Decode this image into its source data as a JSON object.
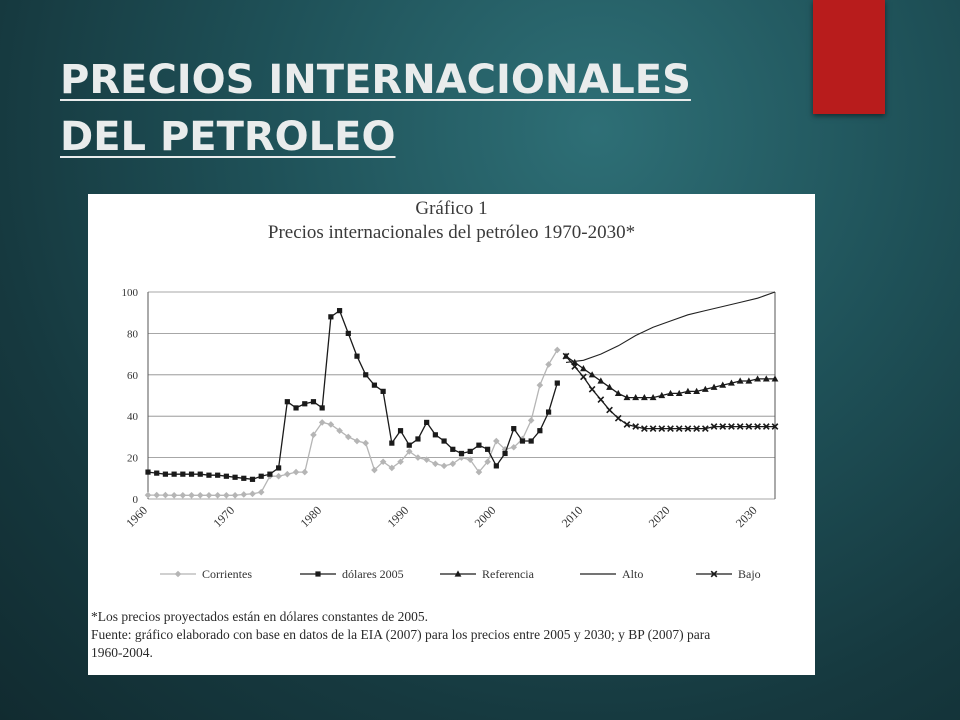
{
  "slide": {
    "title_line1": "PRECIOS INTERNACIONALES",
    "title_line2": "DEL PETROLEO",
    "accent_color": "#b81c1c"
  },
  "figure": {
    "number": "Gráfico 1",
    "title": "Precios internacionales del petróleo 1970-2030*",
    "footnote": "*Los precios proyectados están en dólares constantes de 2005.",
    "source_line1": "Fuente: gráfico elaborado con base en datos de la EIA (2007) para los precios entre 2005 y 2030; y BP (2007) para",
    "source_line2": "1960-2004."
  },
  "chart_data": {
    "type": "line",
    "title": "Precios internacionales del petróleo 1970-2030*",
    "xlabel": "",
    "ylabel": "",
    "xlim": [
      1960,
      2032
    ],
    "ylim": [
      0,
      100
    ],
    "x_ticks": [
      1960,
      1970,
      1980,
      1990,
      2000,
      2010,
      2020,
      2030
    ],
    "y_ticks": [
      0,
      20,
      40,
      60,
      80,
      100
    ],
    "grid": "horizontal",
    "legend_position": "bottom",
    "series": [
      {
        "name": "Corrientes",
        "color": "#b5b5b5",
        "marker": "diamond",
        "x": [
          1960,
          1961,
          1962,
          1963,
          1964,
          1965,
          1966,
          1967,
          1968,
          1969,
          1970,
          1971,
          1972,
          1973,
          1974,
          1975,
          1976,
          1977,
          1978,
          1979,
          1980,
          1981,
          1982,
          1983,
          1984,
          1985,
          1986,
          1987,
          1988,
          1989,
          1990,
          1991,
          1992,
          1993,
          1994,
          1995,
          1996,
          1997,
          1998,
          1999,
          2000,
          2001,
          2002,
          2003,
          2004,
          2005,
          2006,
          2007
        ],
        "y": [
          1.9,
          1.9,
          1.9,
          1.8,
          1.8,
          1.8,
          1.8,
          1.8,
          1.8,
          1.8,
          1.8,
          2.2,
          2.5,
          3.3,
          11,
          11,
          12,
          13,
          13,
          31,
          37,
          36,
          33,
          30,
          28,
          27,
          14,
          18,
          15,
          18,
          23,
          20,
          19,
          17,
          16,
          17,
          20,
          19,
          13,
          18,
          28,
          24,
          25,
          29,
          38,
          55,
          65,
          72
        ]
      },
      {
        "name": "dólares 2005",
        "color": "#1a1a1a",
        "marker": "square",
        "x": [
          1960,
          1961,
          1962,
          1963,
          1964,
          1965,
          1966,
          1967,
          1968,
          1969,
          1970,
          1971,
          1972,
          1973,
          1974,
          1975,
          1976,
          1977,
          1978,
          1979,
          1980,
          1981,
          1982,
          1983,
          1984,
          1985,
          1986,
          1987,
          1988,
          1989,
          1990,
          1991,
          1992,
          1993,
          1994,
          1995,
          1996,
          1997,
          1998,
          1999,
          2000,
          2001,
          2002,
          2003,
          2004,
          2005,
          2006,
          2007
        ],
        "y": [
          13,
          12.5,
          12,
          12,
          12,
          12,
          12,
          11.5,
          11.5,
          11,
          10.5,
          10,
          9.5,
          11,
          12,
          15,
          47,
          44,
          46,
          47,
          44,
          88,
          91,
          80,
          69,
          60,
          55,
          52,
          27,
          33,
          26,
          29,
          37,
          31,
          28,
          24,
          22,
          23,
          26,
          24,
          16,
          22,
          34,
          28,
          28,
          33,
          42,
          56
        ]
      },
      {
        "name": "Referencia",
        "color": "#1a1a1a",
        "marker": "triangle",
        "x": [
          2008,
          2009,
          2010,
          2011,
          2012,
          2013,
          2014,
          2015,
          2016,
          2017,
          2018,
          2019,
          2020,
          2021,
          2022,
          2023,
          2024,
          2025,
          2026,
          2027,
          2028,
          2029,
          2030,
          2031,
          2032
        ],
        "y": [
          69,
          66,
          63,
          60,
          57,
          54,
          51,
          49,
          49,
          49,
          49,
          50,
          51,
          51,
          52,
          52,
          53,
          54,
          55,
          56,
          57,
          57,
          58,
          58,
          58
        ]
      },
      {
        "name": "Alto",
        "color": "#222222",
        "marker": "none",
        "x": [
          2008,
          2010,
          2012,
          2014,
          2016,
          2018,
          2020,
          2022,
          2024,
          2026,
          2028,
          2030,
          2032
        ],
        "y": [
          66,
          67,
          70,
          74,
          79,
          83,
          86,
          89,
          91,
          93,
          95,
          97,
          100
        ]
      },
      {
        "name": "Bajo",
        "color": "#1a1a1a",
        "marker": "cross",
        "x": [
          2008,
          2009,
          2010,
          2011,
          2012,
          2013,
          2014,
          2015,
          2016,
          2017,
          2018,
          2019,
          2020,
          2021,
          2022,
          2023,
          2024,
          2025,
          2026,
          2027,
          2028,
          2029,
          2030,
          2031,
          2032
        ],
        "y": [
          69,
          64,
          59,
          53,
          48,
          43,
          39,
          36,
          35,
          34,
          34,
          34,
          34,
          34,
          34,
          34,
          34,
          35,
          35,
          35,
          35,
          35,
          35,
          35,
          35
        ]
      }
    ]
  }
}
